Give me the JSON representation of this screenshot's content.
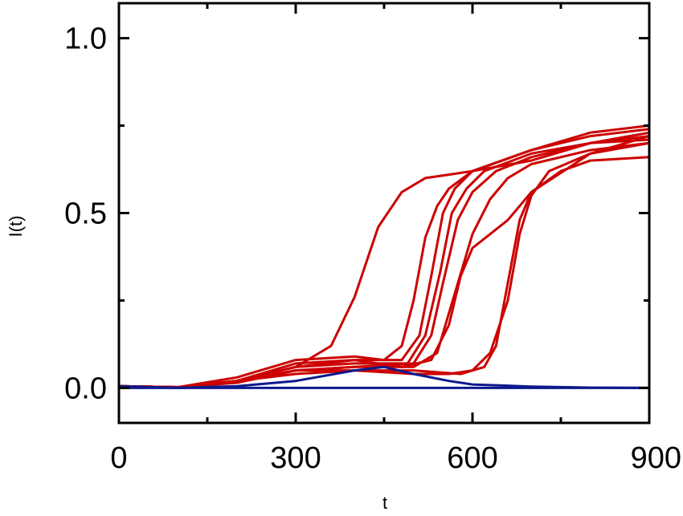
{
  "chart_data": {
    "type": "line",
    "title": "",
    "xlabel": "t",
    "ylabel": "I(t)",
    "xlim": [
      0,
      900
    ],
    "ylim": [
      -0.1,
      1.1
    ],
    "x_ticks": [
      {
        "value": 0,
        "label": "0"
      },
      {
        "value": 300,
        "label": "300"
      },
      {
        "value": 600,
        "label": "600"
      },
      {
        "value": 900,
        "label": "900"
      }
    ],
    "x_minor_ticks": [
      150,
      450,
      750
    ],
    "y_ticks": [
      {
        "value": 0.0,
        "label": "0.0"
      },
      {
        "value": 0.5,
        "label": "0.5"
      },
      {
        "value": 1.0,
        "label": "1.0"
      }
    ],
    "y_minor_ticks": [
      0.25,
      0.75
    ],
    "grid": false,
    "colors": {
      "outbreak": "#cc0000",
      "baseline": "#0d1a8c",
      "axis": "#000000"
    },
    "series": [
      {
        "group": "outbreak",
        "x": [
          0,
          100,
          200,
          300,
          360,
          400,
          440,
          480,
          520,
          560,
          600,
          700,
          800,
          900
        ],
        "y": [
          0.005,
          0.002,
          0.02,
          0.06,
          0.12,
          0.26,
          0.46,
          0.56,
          0.6,
          0.61,
          0.62,
          0.65,
          0.7,
          0.73
        ]
      },
      {
        "group": "outbreak",
        "x": [
          0,
          100,
          200,
          300,
          400,
          450,
          480,
          500,
          520,
          540,
          560,
          600,
          700,
          800,
          900
        ],
        "y": [
          0.005,
          0.002,
          0.03,
          0.08,
          0.09,
          0.08,
          0.12,
          0.25,
          0.43,
          0.52,
          0.57,
          0.62,
          0.68,
          0.73,
          0.75
        ]
      },
      {
        "group": "outbreak",
        "x": [
          0,
          100,
          200,
          300,
          400,
          480,
          510,
          530,
          550,
          570,
          600,
          700,
          800,
          900
        ],
        "y": [
          0.005,
          0.002,
          0.02,
          0.07,
          0.08,
          0.08,
          0.15,
          0.32,
          0.5,
          0.57,
          0.62,
          0.68,
          0.72,
          0.74
        ]
      },
      {
        "group": "outbreak",
        "x": [
          0,
          100,
          200,
          300,
          400,
          490,
          520,
          545,
          565,
          590,
          620,
          700,
          800,
          900
        ],
        "y": [
          0.005,
          0.002,
          0.02,
          0.06,
          0.07,
          0.07,
          0.15,
          0.33,
          0.5,
          0.57,
          0.62,
          0.67,
          0.7,
          0.72
        ]
      },
      {
        "group": "outbreak",
        "x": [
          0,
          100,
          200,
          300,
          400,
          500,
          530,
          550,
          575,
          600,
          640,
          700,
          800,
          900
        ],
        "y": [
          0.005,
          0.002,
          0.015,
          0.05,
          0.06,
          0.07,
          0.15,
          0.3,
          0.48,
          0.56,
          0.62,
          0.66,
          0.7,
          0.71
        ]
      },
      {
        "group": "outbreak",
        "x": [
          0,
          100,
          200,
          300,
          400,
          500,
          540,
          570,
          600,
          630,
          660,
          700,
          800,
          900
        ],
        "y": [
          0.005,
          0.002,
          0.015,
          0.05,
          0.06,
          0.06,
          0.1,
          0.27,
          0.44,
          0.54,
          0.6,
          0.64,
          0.68,
          0.7
        ]
      },
      {
        "group": "outbreak",
        "x": [
          0,
          100,
          200,
          300,
          400,
          480,
          530,
          560,
          580,
          600,
          630,
          660,
          700,
          800,
          900
        ],
        "y": [
          0.005,
          0.002,
          0.02,
          0.06,
          0.08,
          0.06,
          0.08,
          0.18,
          0.32,
          0.4,
          0.44,
          0.48,
          0.56,
          0.67,
          0.72
        ]
      },
      {
        "group": "outbreak",
        "x": [
          0,
          100,
          200,
          300,
          400,
          500,
          560,
          600,
          630,
          660,
          680,
          700,
          730,
          800,
          900
        ],
        "y": [
          0.005,
          0.002,
          0.02,
          0.05,
          0.05,
          0.04,
          0.04,
          0.05,
          0.1,
          0.25,
          0.44,
          0.55,
          0.62,
          0.67,
          0.7
        ]
      },
      {
        "group": "outbreak",
        "x": [
          0,
          100,
          200,
          300,
          400,
          500,
          580,
          620,
          640,
          660,
          680,
          700,
          750,
          800,
          900
        ],
        "y": [
          0.005,
          0.002,
          0.02,
          0.04,
          0.05,
          0.05,
          0.04,
          0.06,
          0.12,
          0.3,
          0.48,
          0.56,
          0.62,
          0.65,
          0.66
        ]
      },
      {
        "group": "baseline",
        "x": [
          0,
          100,
          200,
          300,
          400,
          450,
          500,
          560,
          600,
          700,
          800,
          900
        ],
        "y": [
          0.005,
          0.0,
          0.005,
          0.02,
          0.05,
          0.06,
          0.04,
          0.02,
          0.01,
          0.004,
          0.001,
          0.0
        ]
      },
      {
        "group": "baseline",
        "x": [
          0,
          100,
          200,
          300,
          400,
          500,
          600,
          700,
          800,
          900
        ],
        "y": [
          0.0,
          0.0,
          0.0,
          0.0,
          0.0,
          0.0,
          0.0,
          0.0,
          0.0,
          0.0
        ]
      }
    ]
  }
}
